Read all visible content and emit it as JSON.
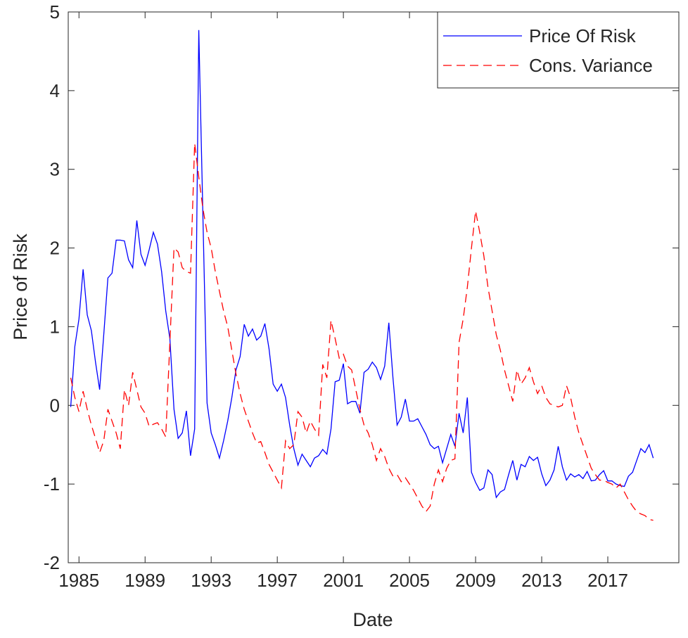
{
  "chart_data": {
    "type": "line",
    "x_label": "Date",
    "y_label": "Price of Risk",
    "xlim": [
      1984.35,
      2021.3
    ],
    "ylim": [
      -2,
      5
    ],
    "xticks": [
      1985,
      1989,
      1993,
      1997,
      2001,
      2005,
      2009,
      2013,
      2017
    ],
    "yticks": [
      -2,
      -1,
      0,
      1,
      2,
      3,
      4,
      5
    ],
    "legend": "northeast",
    "x": [
      1984.5,
      1984.75,
      1985,
      1985.25,
      1985.5,
      1985.75,
      1986,
      1986.25,
      1986.5,
      1986.75,
      1987,
      1987.25,
      1987.5,
      1987.75,
      1988,
      1988.25,
      1988.5,
      1988.75,
      1989,
      1989.25,
      1989.5,
      1989.75,
      1990,
      1990.25,
      1990.5,
      1990.75,
      1991,
      1991.25,
      1991.5,
      1991.75,
      1992,
      1992.25,
      1992.5,
      1992.75,
      1993,
      1993.25,
      1993.5,
      1993.75,
      1994,
      1994.25,
      1994.5,
      1994.75,
      1995,
      1995.25,
      1995.5,
      1995.75,
      1996,
      1996.25,
      1996.5,
      1996.75,
      1997,
      1997.25,
      1997.5,
      1997.75,
      1998,
      1998.25,
      1998.5,
      1998.75,
      1999,
      1999.25,
      1999.5,
      1999.75,
      2000,
      2000.25,
      2000.5,
      2000.75,
      2001,
      2001.25,
      2001.5,
      2001.75,
      2002,
      2002.25,
      2002.5,
      2002.75,
      2003,
      2003.25,
      2003.5,
      2003.75,
      2004,
      2004.25,
      2004.5,
      2004.75,
      2005,
      2005.25,
      2005.5,
      2005.75,
      2006,
      2006.25,
      2006.5,
      2006.75,
      2007,
      2007.25,
      2007.5,
      2007.75,
      2008,
      2008.25,
      2008.5,
      2008.75,
      2009,
      2009.25,
      2009.5,
      2009.75,
      2010,
      2010.25,
      2010.5,
      2010.75,
      2011,
      2011.25,
      2011.5,
      2011.75,
      2012,
      2012.25,
      2012.5,
      2012.75,
      2013,
      2013.25,
      2013.5,
      2013.75,
      2014,
      2014.25,
      2014.5,
      2014.75,
      2015,
      2015.25,
      2015.5,
      2015.75,
      2016,
      2016.25,
      2016.5,
      2016.75,
      2017,
      2017.25,
      2017.5,
      2017.75,
      2018,
      2018.25,
      2018.5,
      2018.75,
      2019,
      2019.25,
      2019.5,
      2019.75
    ],
    "series": [
      {
        "name": "Price Of Risk",
        "color": "#0000ff",
        "dash": "solid",
        "values": [
          -0.02,
          0.75,
          1.1,
          1.73,
          1.15,
          0.95,
          0.55,
          0.2,
          0.9,
          1.62,
          1.68,
          2.1,
          2.1,
          2.09,
          1.85,
          1.75,
          2.35,
          1.92,
          1.78,
          1.98,
          2.2,
          2.05,
          1.7,
          1.2,
          0.85,
          -0.05,
          -0.42,
          -0.35,
          -0.07,
          -0.64,
          -0.3,
          4.77,
          2.4,
          0.03,
          -0.35,
          -0.5,
          -0.67,
          -0.45,
          -0.2,
          0.1,
          0.45,
          0.62,
          1.03,
          0.88,
          0.97,
          0.83,
          0.88,
          1.04,
          0.72,
          0.27,
          0.18,
          0.27,
          0.1,
          -0.25,
          -0.55,
          -0.76,
          -0.62,
          -0.7,
          -0.78,
          -0.67,
          -0.64,
          -0.56,
          -0.62,
          -0.3,
          0.3,
          0.32,
          0.53,
          0.02,
          0.05,
          0.05,
          -0.1,
          0.42,
          0.46,
          0.55,
          0.48,
          0.33,
          0.5,
          1.05,
          0.35,
          -0.25,
          -0.15,
          0.08,
          -0.2,
          -0.2,
          -0.17,
          -0.27,
          -0.37,
          -0.5,
          -0.55,
          -0.52,
          -0.73,
          -0.55,
          -0.37,
          -0.52,
          -0.1,
          -0.35,
          0.1,
          -0.85,
          -0.98,
          -1.08,
          -1.05,
          -0.82,
          -0.88,
          -1.17,
          -1.1,
          -1.07,
          -0.88,
          -0.7,
          -0.95,
          -0.75,
          -0.78,
          -0.65,
          -0.7,
          -0.66,
          -0.87,
          -1.02,
          -0.95,
          -0.82,
          -0.52,
          -0.78,
          -0.95,
          -0.87,
          -0.91,
          -0.88,
          -0.93,
          -0.84,
          -0.96,
          -0.95,
          -0.88,
          -0.83,
          -0.96,
          -0.96,
          -1.0,
          -1.02,
          -1.03,
          -0.9,
          -0.85,
          -0.7,
          -0.55,
          -0.6,
          -0.5,
          -0.67
        ]
      },
      {
        "name": "Cons. Variance",
        "color": "#ff0000",
        "dash": "dashed",
        "values": [
          0.35,
          0.1,
          -0.08,
          0.18,
          -0.05,
          -0.25,
          -0.42,
          -0.6,
          -0.45,
          -0.05,
          -0.2,
          -0.35,
          -0.55,
          0.2,
          0.0,
          0.42,
          0.2,
          -0.02,
          -0.1,
          -0.27,
          -0.24,
          -0.22,
          -0.3,
          -0.4,
          0.8,
          2.0,
          1.95,
          1.75,
          1.7,
          1.68,
          3.33,
          2.9,
          2.5,
          2.2,
          2.0,
          1.7,
          1.45,
          1.2,
          1.0,
          0.7,
          0.4,
          0.15,
          -0.05,
          -0.2,
          -0.35,
          -0.48,
          -0.46,
          -0.6,
          -0.75,
          -0.85,
          -0.95,
          -1.05,
          -0.45,
          -0.55,
          -0.5,
          -0.08,
          -0.15,
          -0.35,
          -0.2,
          -0.3,
          -0.38,
          0.52,
          0.35,
          1.08,
          0.85,
          0.6,
          0.65,
          0.5,
          0.45,
          0.2,
          -0.05,
          -0.25,
          -0.35,
          -0.5,
          -0.7,
          -0.55,
          -0.65,
          -0.8,
          -0.9,
          -0.88,
          -0.97,
          -0.92,
          -1.0,
          -1.08,
          -1.18,
          -1.28,
          -1.35,
          -1.28,
          -1.0,
          -0.82,
          -0.97,
          -0.8,
          -0.7,
          -0.68,
          0.8,
          1.1,
          1.5,
          2.0,
          2.47,
          2.2,
          1.9,
          1.5,
          1.2,
          0.9,
          0.7,
          0.45,
          0.25,
          0.05,
          0.45,
          0.27,
          0.35,
          0.48,
          0.3,
          0.15,
          0.25,
          0.1,
          0.02,
          0.0,
          -0.02,
          0.0,
          0.25,
          0.1,
          -0.15,
          -0.35,
          -0.5,
          -0.65,
          -0.8,
          -0.88,
          -0.95,
          -0.95,
          -0.98,
          -1.0,
          -1.05,
          -1.0,
          -1.1,
          -1.2,
          -1.28,
          -1.35,
          -1.38,
          -1.4,
          -1.45,
          -1.46
        ]
      }
    ]
  }
}
